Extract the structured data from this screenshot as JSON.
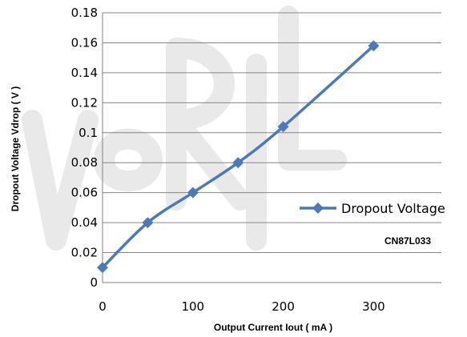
{
  "chart_data": {
    "type": "line",
    "xlabel": "Output Current Iout ( mA )",
    "ylabel": "Dropout Voltage Vdrop ( V )",
    "xlim": [
      0,
      375
    ],
    "ylim": [
      0,
      0.18
    ],
    "x_ticks": [
      0,
      100,
      200,
      300
    ],
    "y_ticks": [
      0,
      0.02,
      0.04,
      0.06,
      0.08,
      0.1,
      0.12,
      0.14,
      0.16,
      0.18
    ],
    "x_tick_labels": [
      "0",
      "100",
      "200",
      "300"
    ],
    "y_tick_labels": [
      "0",
      "0.02",
      "0.04",
      "0.06",
      "0.08",
      "0.1",
      "0.12",
      "0.14",
      "0.16",
      "0.18"
    ],
    "grid": "horizontal",
    "legend_position": "right",
    "series": [
      {
        "name": "Dropout Voltage",
        "color": "#4a7ab8",
        "marker": "diamond",
        "x": [
          0,
          50,
          100,
          150,
          200,
          300
        ],
        "y": [
          0.01,
          0.04,
          0.06,
          0.08,
          0.104,
          0.158
        ]
      }
    ],
    "annotation": "CN87L033"
  }
}
